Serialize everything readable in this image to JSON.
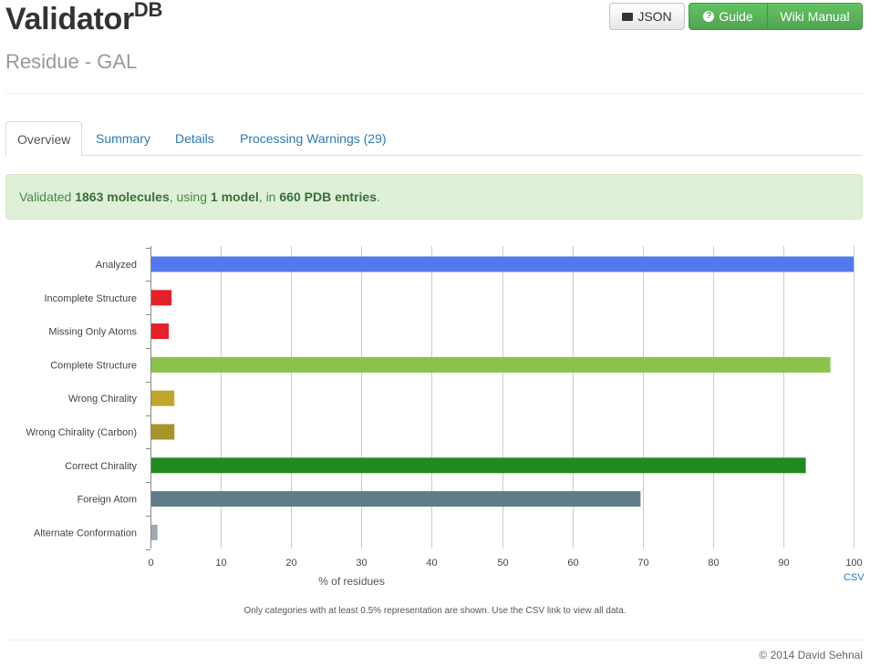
{
  "header": {
    "title": "Validator",
    "title_sup": "DB",
    "subtitle": "Residue - GAL",
    "json_button": "JSON",
    "guide_button": "Guide",
    "wiki_button": "Wiki Manual"
  },
  "tabs": [
    {
      "label": "Overview",
      "active": true
    },
    {
      "label": "Summary",
      "active": false
    },
    {
      "label": "Details",
      "active": false
    },
    {
      "label": "Processing Warnings (29)",
      "active": false
    }
  ],
  "alert": {
    "prefix": "Validated ",
    "molecules": "1863 molecules",
    "mid1": ", using ",
    "models": "1 model",
    "mid2": ", in ",
    "entries": "660 PDB entries",
    "suffix": "."
  },
  "chart_data": {
    "type": "bar",
    "orientation": "horizontal",
    "xlabel": "% of residues",
    "xlim": [
      0,
      100
    ],
    "xticks": [
      0,
      10,
      20,
      30,
      40,
      50,
      60,
      70,
      80,
      90,
      100
    ],
    "grid": true,
    "csv_link": "CSV",
    "categories": [
      "Analyzed",
      "Incomplete Structure",
      "Missing Only Atoms",
      "Complete Structure",
      "Wrong Chirality",
      "Wrong Chirality (Carbon)",
      "Correct Chirality",
      "Foreign Atom",
      "Alternate Conformation"
    ],
    "values": [
      100,
      3.0,
      2.6,
      96.7,
      3.4,
      3.4,
      93.2,
      69.7,
      1.0
    ],
    "colors": [
      "#5279ee",
      "#e52028",
      "#e52028",
      "#8bc34a",
      "#c2a62c",
      "#a8922a",
      "#22891f",
      "#5f7d88",
      "#9aabb4"
    ]
  },
  "note": "Only categories with at least 0.5% representation are shown. Use the CSV link to view all data.",
  "footer": {
    "copyright": "© 2014 David Sehnal"
  }
}
